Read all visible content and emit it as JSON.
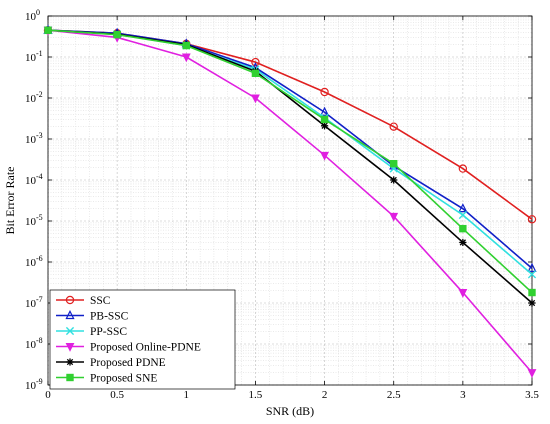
{
  "chart_data": {
    "type": "line",
    "xlabel": "SNR (dB)",
    "ylabel": "Bit Error Rate",
    "xlim": [
      0,
      3.5
    ],
    "ylim": [
      1e-09,
      1
    ],
    "yscale": "log",
    "grid": true,
    "legend_position": "bottom-left",
    "x_ticks": [
      "0",
      "0.5",
      "1",
      "1.5",
      "2",
      "2.5",
      "3",
      "3.5"
    ],
    "y_ticks": [
      {
        "base": "10",
        "exp": "0"
      },
      {
        "base": "10",
        "exp": "-1"
      },
      {
        "base": "10",
        "exp": "-2"
      },
      {
        "base": "10",
        "exp": "-3"
      },
      {
        "base": "10",
        "exp": "-4"
      },
      {
        "base": "10",
        "exp": "-5"
      },
      {
        "base": "10",
        "exp": "-6"
      },
      {
        "base": "10",
        "exp": "-7"
      },
      {
        "base": "10",
        "exp": "-8"
      },
      {
        "base": "10",
        "exp": "-9"
      }
    ],
    "x": [
      0,
      0.5,
      1,
      1.5,
      2,
      2.5,
      3,
      3.5
    ],
    "series": [
      {
        "name": "SSC",
        "color": "#e02020",
        "marker": "circle",
        "values": [
          0.45,
          0.38,
          0.21,
          0.075,
          0.014,
          0.002,
          0.00019,
          1.1e-05
        ]
      },
      {
        "name": "PB-SSC",
        "color": "#1020c8",
        "marker": "triangle-up",
        "values": [
          0.45,
          0.38,
          0.21,
          0.055,
          0.0045,
          0.00022,
          2e-05,
          7e-07
        ]
      },
      {
        "name": "PP-SSC",
        "color": "#30e0e0",
        "marker": "x",
        "values": [
          0.45,
          0.36,
          0.19,
          0.05,
          0.0033,
          0.00019,
          1.4e-05,
          5e-07
        ]
      },
      {
        "name": "Proposed Online-PDNE",
        "color": "#e020e0",
        "marker": "triangle-down",
        "values": [
          0.45,
          0.3,
          0.1,
          0.01,
          0.0004,
          1.3e-05,
          1.8e-07,
          2e-09
        ]
      },
      {
        "name": "Proposed PDNE",
        "color": "#000000",
        "marker": "asterisk",
        "values": [
          0.45,
          0.36,
          0.2,
          0.045,
          0.0021,
          0.0001,
          3e-06,
          1e-07
        ]
      },
      {
        "name": "Proposed SNE",
        "color": "#30d030",
        "marker": "square",
        "values": [
          0.45,
          0.35,
          0.19,
          0.04,
          0.003,
          0.00025,
          6.5e-06,
          1.8e-07
        ]
      }
    ]
  }
}
